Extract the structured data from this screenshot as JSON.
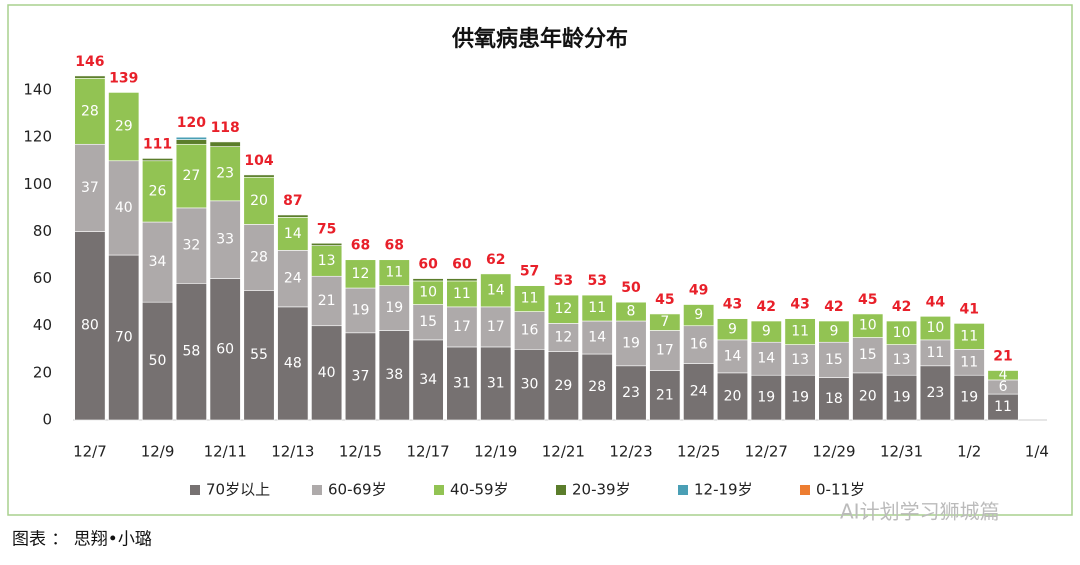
{
  "chart_data": {
    "type": "stacked_bar",
    "title": "供氧病患年龄分布",
    "categories": [
      "12/7",
      null,
      "12/9",
      null,
      "12/11",
      null,
      "12/13",
      null,
      "12/15",
      null,
      "12/17",
      null,
      "12/19",
      null,
      "12/21",
      null,
      "12/23",
      null,
      "12/25",
      null,
      "12/27",
      null,
      "12/29",
      null,
      "12/31",
      null,
      "1/2",
      null,
      "1/4"
    ],
    "series": [
      {
        "name": "70岁以上",
        "color": "#767171",
        "values": [
          80,
          70,
          50,
          58,
          60,
          55,
          48,
          40,
          37,
          38,
          34,
          31,
          31,
          30,
          29,
          28,
          23,
          21,
          24,
          20,
          19,
          19,
          18,
          20,
          19,
          23,
          19,
          11,
          null
        ]
      },
      {
        "name": "60-69岁",
        "color": "#aeaaaa",
        "values": [
          37,
          40,
          34,
          32,
          33,
          28,
          24,
          21,
          19,
          19,
          15,
          17,
          17,
          16,
          12,
          14,
          19,
          17,
          16,
          14,
          14,
          13,
          15,
          15,
          13,
          11,
          11,
          6,
          null
        ]
      },
      {
        "name": "40-59岁",
        "color": "#92c353",
        "values": [
          28,
          29,
          26,
          27,
          23,
          20,
          14,
          13,
          12,
          11,
          10,
          11,
          14,
          11,
          12,
          11,
          8,
          7,
          9,
          9,
          9,
          11,
          9,
          10,
          10,
          10,
          11,
          4,
          null
        ]
      },
      {
        "name": "20-39岁",
        "color": "#5b7d2b",
        "values": [
          1,
          0,
          1,
          2,
          2,
          1,
          1,
          1,
          0,
          0,
          1,
          1,
          0,
          0,
          0,
          0,
          0,
          0,
          0,
          0,
          0,
          0,
          0,
          0,
          0,
          0,
          0,
          0,
          null
        ]
      },
      {
        "name": "12-19岁",
        "color": "#4a9fb5",
        "values": [
          0,
          0,
          0,
          1,
          0,
          0,
          0,
          0,
          0,
          0,
          0,
          0,
          0,
          0,
          0,
          0,
          0,
          0,
          0,
          0,
          0,
          0,
          0,
          0,
          0,
          0,
          0,
          0,
          null
        ]
      },
      {
        "name": "0-11岁",
        "color": "#ed7d31",
        "values": [
          0,
          0,
          0,
          0,
          0,
          0,
          0,
          0,
          0,
          0,
          0,
          0,
          0,
          0,
          0,
          0,
          0,
          0,
          0,
          0,
          0,
          0,
          0,
          0,
          0,
          0,
          0,
          0,
          null
        ]
      }
    ],
    "totals": [
      146,
      139,
      111,
      120,
      118,
      104,
      87,
      75,
      68,
      68,
      60,
      60,
      62,
      57,
      53,
      53,
      50,
      45,
      49,
      43,
      42,
      43,
      42,
      45,
      42,
      44,
      41,
      21,
      null
    ],
    "totals_color": "#e8202a",
    "ylim": [
      0,
      150
    ],
    "yticks": [
      0,
      20,
      40,
      60,
      80,
      100,
      120,
      140
    ],
    "grid": false,
    "legend": "bottom"
  },
  "caption": "图表 ： 思翔•小璐",
  "watermark": "AI计划学习狮城篇"
}
